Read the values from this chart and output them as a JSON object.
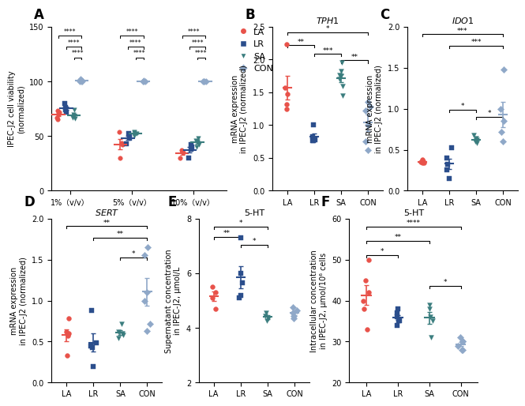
{
  "panel_A": {
    "ylabel": "IPEC-J2 cell viability\n(normalized)",
    "group_labels": [
      "1%（v/v）",
      "5%（v/v）",
      "10%（v/v）"
    ],
    "LA": {
      "1%": [
        70,
        72,
        67,
        65,
        73
      ],
      "5%": [
        54,
        44,
        42,
        30
      ],
      "10%": [
        37,
        36,
        35,
        30
      ]
    },
    "LR": {
      "1%": [
        80,
        76,
        74,
        72
      ],
      "5%": [
        52,
        50,
        48,
        43
      ],
      "10%": [
        42,
        40,
        38,
        30
      ]
    },
    "SA": {
      "1%": [
        74,
        70,
        68,
        67,
        66
      ],
      "5%": [
        54,
        53,
        52,
        50
      ],
      "10%": [
        48,
        46,
        45,
        42,
        40
      ]
    },
    "CON": {
      "1%": [
        100,
        100,
        100,
        101,
        102
      ],
      "5%": [
        100,
        100,
        100,
        101
      ],
      "10%": [
        100,
        100,
        100,
        100
      ]
    },
    "ylim": [
      0,
      150
    ],
    "yticks": [
      0,
      50,
      100,
      150
    ]
  },
  "panel_B": {
    "gene": "TPH1",
    "ylabel": "mRNA expression\nin IPEC-J2 (normalized)",
    "LA": [
      2.24,
      1.57,
      1.47,
      1.32,
      1.25
    ],
    "LR": [
      1.0,
      0.82,
      0.78,
      0.77,
      0.76
    ],
    "SA": [
      1.96,
      1.82,
      1.76,
      1.75,
      1.7,
      1.6,
      1.45
    ],
    "CON": [
      1.35,
      1.28,
      1.22,
      1.0,
      0.75,
      0.62
    ],
    "ylim": [
      0,
      2.5
    ],
    "yticks": [
      0.0,
      0.5,
      1.0,
      1.5,
      2.0,
      2.5
    ],
    "brackets": [
      [
        0,
        3,
        2.38,
        "*"
      ],
      [
        0,
        1,
        2.18,
        "**"
      ],
      [
        1,
        2,
        2.05,
        "***"
      ],
      [
        2,
        3,
        1.95,
        "**"
      ]
    ]
  },
  "panel_C": {
    "gene": "IDO1",
    "ylabel": "mRNA expression\nin IPEC-J2 (normalized)",
    "LA": [
      0.38,
      0.36,
      0.35,
      0.34,
      0.34
    ],
    "LR": [
      0.52,
      0.4,
      0.32,
      0.25,
      0.15
    ],
    "SA": [
      0.68,
      0.64,
      0.62,
      0.6,
      0.58
    ],
    "CON": [
      1.48,
      1.0,
      0.85,
      0.72,
      0.6
    ],
    "ylim": [
      0,
      2.0
    ],
    "yticks": [
      0.0,
      0.5,
      1.0,
      1.5,
      2.0
    ],
    "brackets": [
      [
        0,
        3,
        1.88,
        "***"
      ],
      [
        1,
        3,
        1.74,
        "***"
      ],
      [
        1,
        2,
        0.96,
        "*"
      ],
      [
        2,
        3,
        0.87,
        "*"
      ]
    ]
  },
  "panel_D": {
    "gene": "SERT",
    "ylabel": "mRNA expression\nin IPEC-J2 (normalized)",
    "LA": [
      0.78,
      0.62,
      0.6,
      0.57,
      0.33
    ],
    "LR": [
      0.88,
      0.48,
      0.45,
      0.43,
      0.2
    ],
    "SA": [
      0.72,
      0.62,
      0.6,
      0.58,
      0.54
    ],
    "CON": [
      1.65,
      1.55,
      1.1,
      1.0,
      0.72,
      0.63
    ],
    "ylim": [
      0,
      2.0
    ],
    "yticks": [
      0.0,
      0.5,
      1.0,
      1.5,
      2.0
    ],
    "brackets": [
      [
        0,
        3,
        1.88,
        "**"
      ],
      [
        1,
        3,
        1.74,
        "**"
      ],
      [
        2,
        3,
        1.5,
        "*"
      ]
    ]
  },
  "panel_E": {
    "subtitle": "5-HT",
    "ylabel": "Supernatant concentration\nin IPEC-J2, μmol/L",
    "LA": [
      5.5,
      5.3,
      5.1,
      4.7
    ],
    "LR": [
      7.3,
      6.0,
      5.65,
      5.2,
      5.1
    ],
    "SA": [
      4.55,
      4.45,
      4.35,
      4.25
    ],
    "CON": [
      4.75,
      4.65,
      4.55,
      4.45,
      4.35
    ],
    "ylim": [
      2,
      8
    ],
    "yticks": [
      2,
      4,
      6,
      8
    ],
    "brackets": [
      [
        0,
        2,
        7.62,
        "*"
      ],
      [
        0,
        1,
        7.25,
        "**"
      ],
      [
        1,
        2,
        6.95,
        "*"
      ]
    ]
  },
  "panel_F": {
    "subtitle": "5-HT",
    "ylabel": "Intracellular concentration\nin IPEC-J2, μmol/10⁶ cells",
    "LA": [
      50,
      45,
      42,
      40,
      38,
      33
    ],
    "LR": [
      38,
      37,
      36,
      35,
      34,
      35
    ],
    "SA": [
      39,
      38,
      36,
      35,
      31
    ],
    "CON": [
      31,
      30,
      30,
      29,
      28,
      28
    ],
    "ylim": [
      20,
      60
    ],
    "yticks": [
      20,
      30,
      40,
      50,
      60
    ],
    "brackets": [
      [
        0,
        3,
        57.5,
        "****"
      ],
      [
        0,
        2,
        54,
        "**"
      ],
      [
        0,
        1,
        50.5,
        "*"
      ],
      [
        2,
        3,
        43,
        "*"
      ]
    ]
  },
  "colors": {
    "LA": "#E8524A",
    "LR": "#2B4E8C",
    "SA": "#3A7D7E",
    "CON": "#8FA8C8"
  },
  "markers": {
    "LA": "o",
    "LR": "s",
    "SA": "v",
    "CON": "D"
  }
}
